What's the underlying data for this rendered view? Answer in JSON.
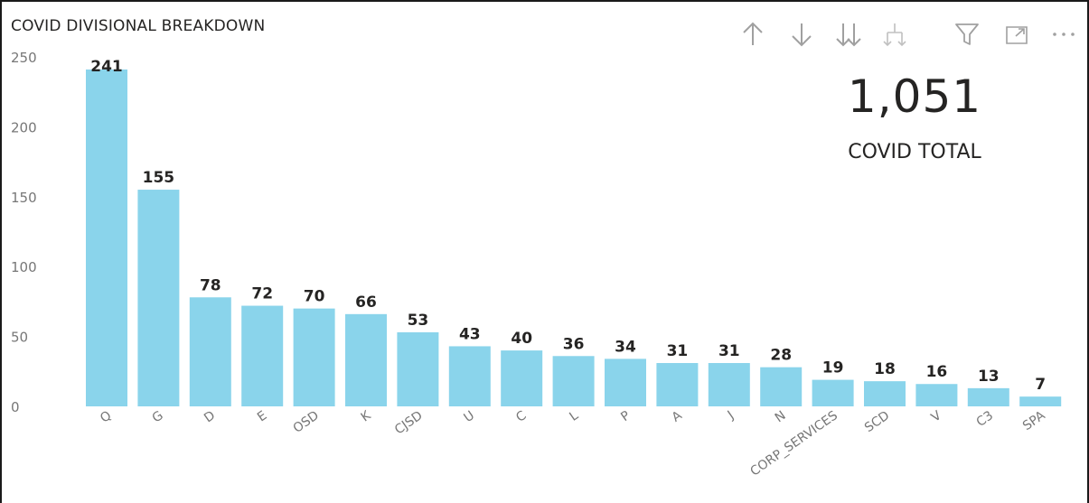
{
  "visual": {
    "title": "COVID DIVISIONAL BREAKDOWN",
    "toolbar_icons": [
      "arrow-up-icon",
      "arrow-down-icon",
      "double-arrow-down-icon",
      "hierarchy-expand-icon",
      "filter-icon",
      "focus-mode-icon",
      "more-options-icon"
    ]
  },
  "kpi": {
    "value": "1,051",
    "label": "COVID TOTAL"
  },
  "chart_data": {
    "type": "bar",
    "title": "COVID DIVISIONAL BREAKDOWN",
    "xlabel": "",
    "ylabel": "",
    "categories": [
      "Q",
      "G",
      "D",
      "E",
      "OSD",
      "K",
      "CJSD",
      "U",
      "C",
      "L",
      "P",
      "A",
      "J",
      "N",
      "CORP_SERVICES",
      "SCD",
      "V",
      "C3",
      "SPA"
    ],
    "values": [
      241,
      155,
      78,
      72,
      70,
      66,
      53,
      43,
      40,
      36,
      34,
      31,
      31,
      28,
      19,
      18,
      16,
      13,
      7
    ],
    "yticks": [
      0,
      50,
      100,
      150,
      200,
      250
    ],
    "ylim": [
      0,
      250
    ],
    "grid": false,
    "data_labels": true,
    "bar_color": "#8AD4EB"
  }
}
